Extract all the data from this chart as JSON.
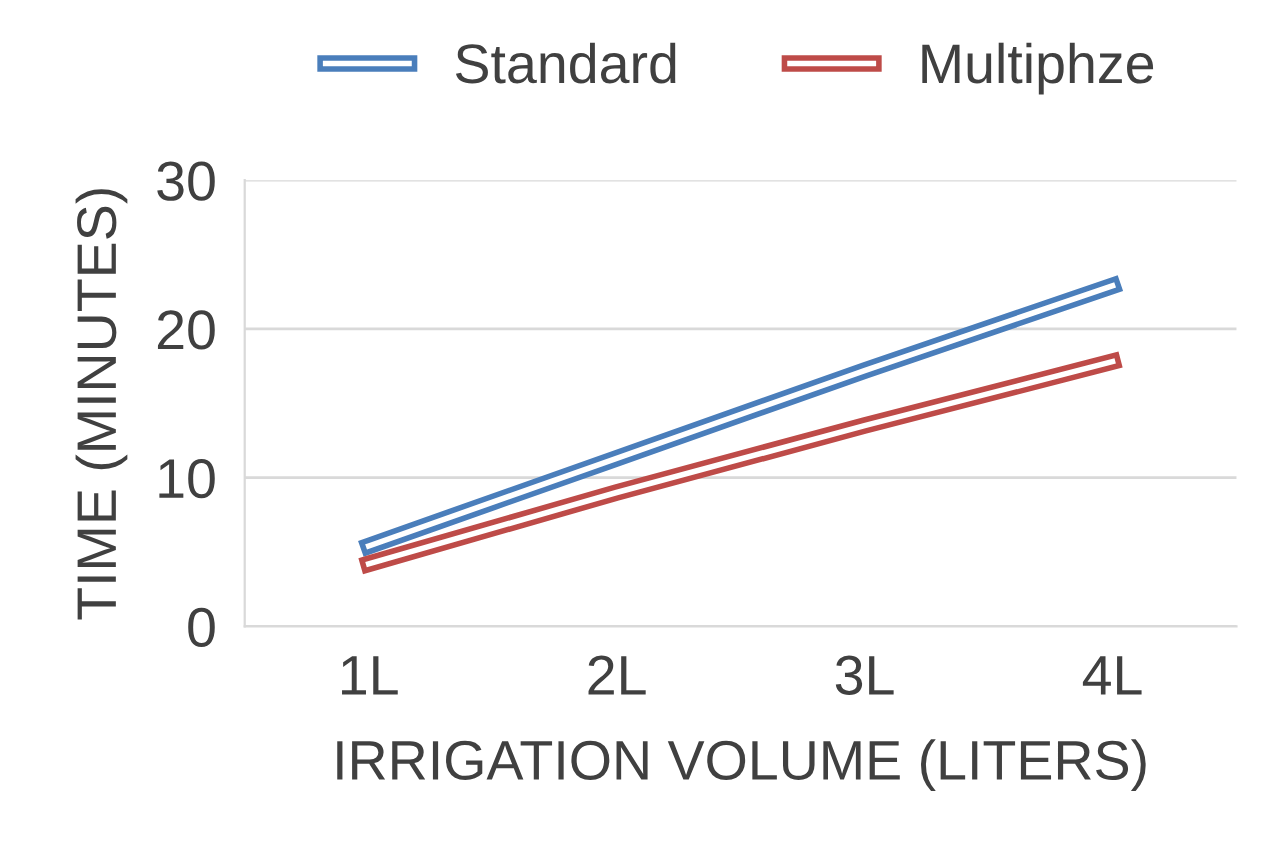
{
  "chart_data": {
    "type": "line",
    "xlabel": "IRRIGATION VOLUME (LITERS)",
    "ylabel": "TIME (MINUTES)",
    "categories": [
      "1L",
      "2L",
      "3L",
      "4L"
    ],
    "series": [
      {
        "name": "Standard",
        "color": "#4a7ebb",
        "values": [
          5.4,
          11.3,
          17.2,
          22.9
        ]
      },
      {
        "name": "Multiphze",
        "color": "#be4b48",
        "values": [
          4.2,
          9.0,
          13.5,
          17.8
        ]
      }
    ],
    "ylim": [
      0,
      30
    ],
    "yticks": [
      0,
      10,
      20,
      30
    ],
    "grid": "y",
    "legend": "top",
    "marker": "none",
    "line_style": "solid"
  }
}
